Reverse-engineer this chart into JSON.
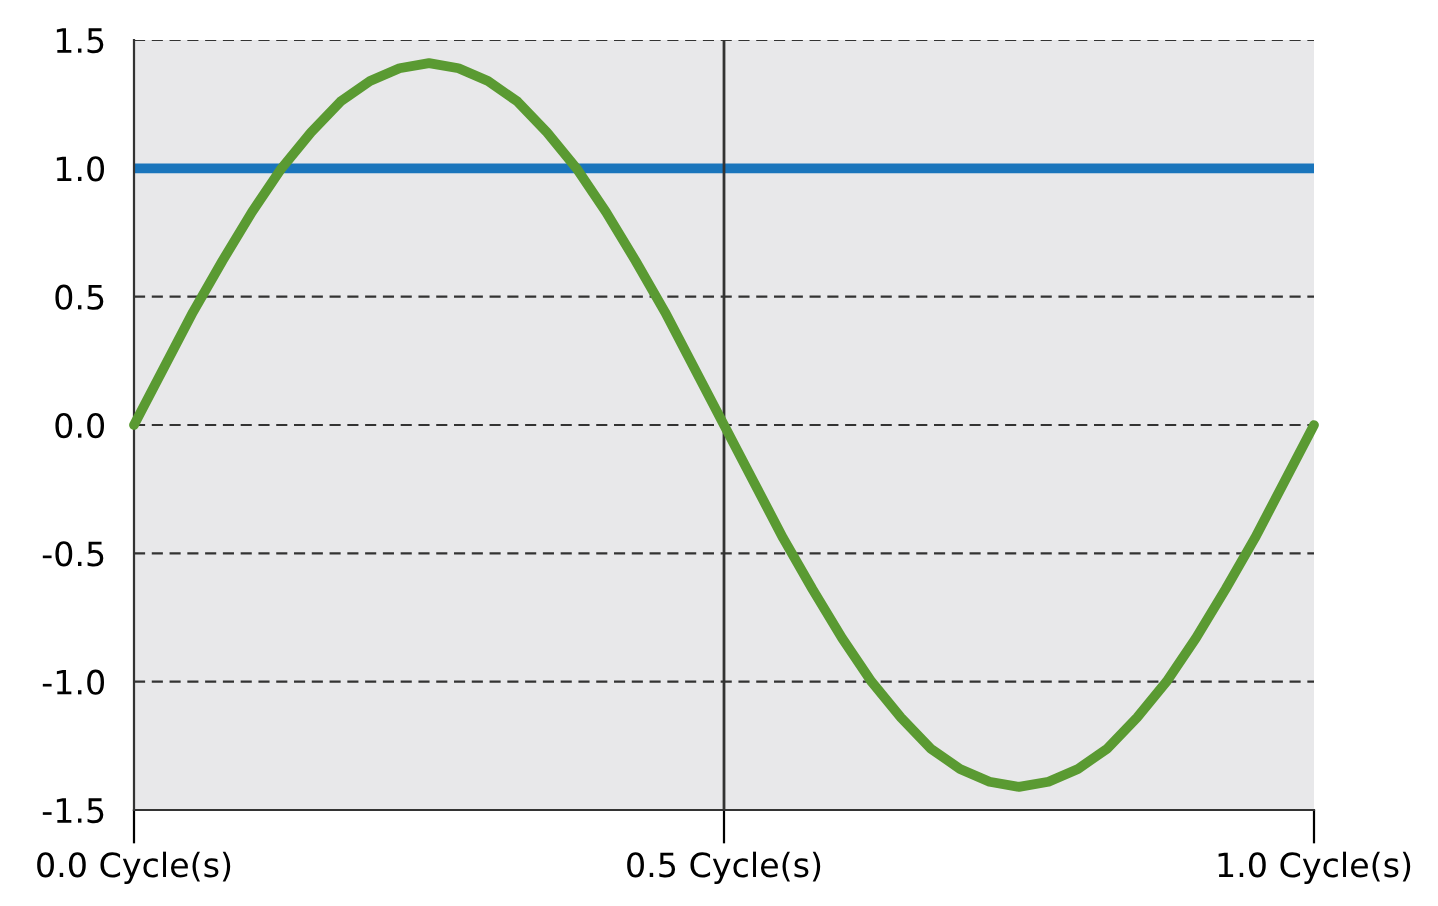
{
  "chart_data": {
    "type": "line",
    "x": [
      0,
      0.025,
      0.05,
      0.075,
      0.1,
      0.125,
      0.15,
      0.175,
      0.2,
      0.225,
      0.25,
      0.275,
      0.3,
      0.325,
      0.35,
      0.375,
      0.4,
      0.425,
      0.45,
      0.475,
      0.5,
      0.525,
      0.55,
      0.575,
      0.6,
      0.625,
      0.65,
      0.675,
      0.7,
      0.725,
      0.75,
      0.775,
      0.8,
      0.825,
      0.85,
      0.875,
      0.9,
      0.925,
      0.95,
      0.975,
      1
    ],
    "series": [
      {
        "color": "#5a9a32",
        "values": [
          0,
          0.22,
          0.44,
          0.64,
          0.83,
          1.0,
          1.14,
          1.26,
          1.34,
          1.39,
          1.41,
          1.39,
          1.34,
          1.26,
          1.14,
          1.0,
          0.83,
          0.64,
          0.44,
          0.22,
          0,
          -0.22,
          -0.44,
          -0.64,
          -0.83,
          -1.0,
          -1.14,
          -1.26,
          -1.34,
          -1.39,
          -1.41,
          -1.39,
          -1.34,
          -1.26,
          -1.14,
          -1.0,
          -0.83,
          -0.64,
          -0.44,
          -0.22,
          0
        ]
      }
    ],
    "xlim": [
      0,
      1
    ],
    "xticks": [
      {
        "value": 0,
        "label": "0.0 Cycle(s)"
      },
      {
        "value": 0.5,
        "label": "0.5 Cycle(s)"
      },
      {
        "value": 1,
        "label": "1.0 Cycle(s)"
      }
    ],
    "ylim": [
      -1.5,
      1.5
    ],
    "yticks": [
      {
        "value": -1.5,
        "label": "-1.5"
      },
      {
        "value": -1.0,
        "label": "-1.0"
      },
      {
        "value": -0.5,
        "label": "-0.5"
      },
      {
        "value": 0,
        "label": "0.0"
      },
      {
        "value": 0.5,
        "label": "0.5"
      },
      {
        "value": 1.0,
        "label": "1.0"
      },
      {
        "value": 1.5,
        "label": "1.5"
      }
    ],
    "ref_lines": [
      {
        "axis": "y",
        "value": 1.0,
        "color": "#1a75bc",
        "line_style": "solid"
      },
      {
        "axis": "x",
        "value": 0.5,
        "color": "#333333",
        "line_style": "solid"
      }
    ],
    "grid": "y",
    "legend": false,
    "marker": "none",
    "line_style": "solid"
  }
}
